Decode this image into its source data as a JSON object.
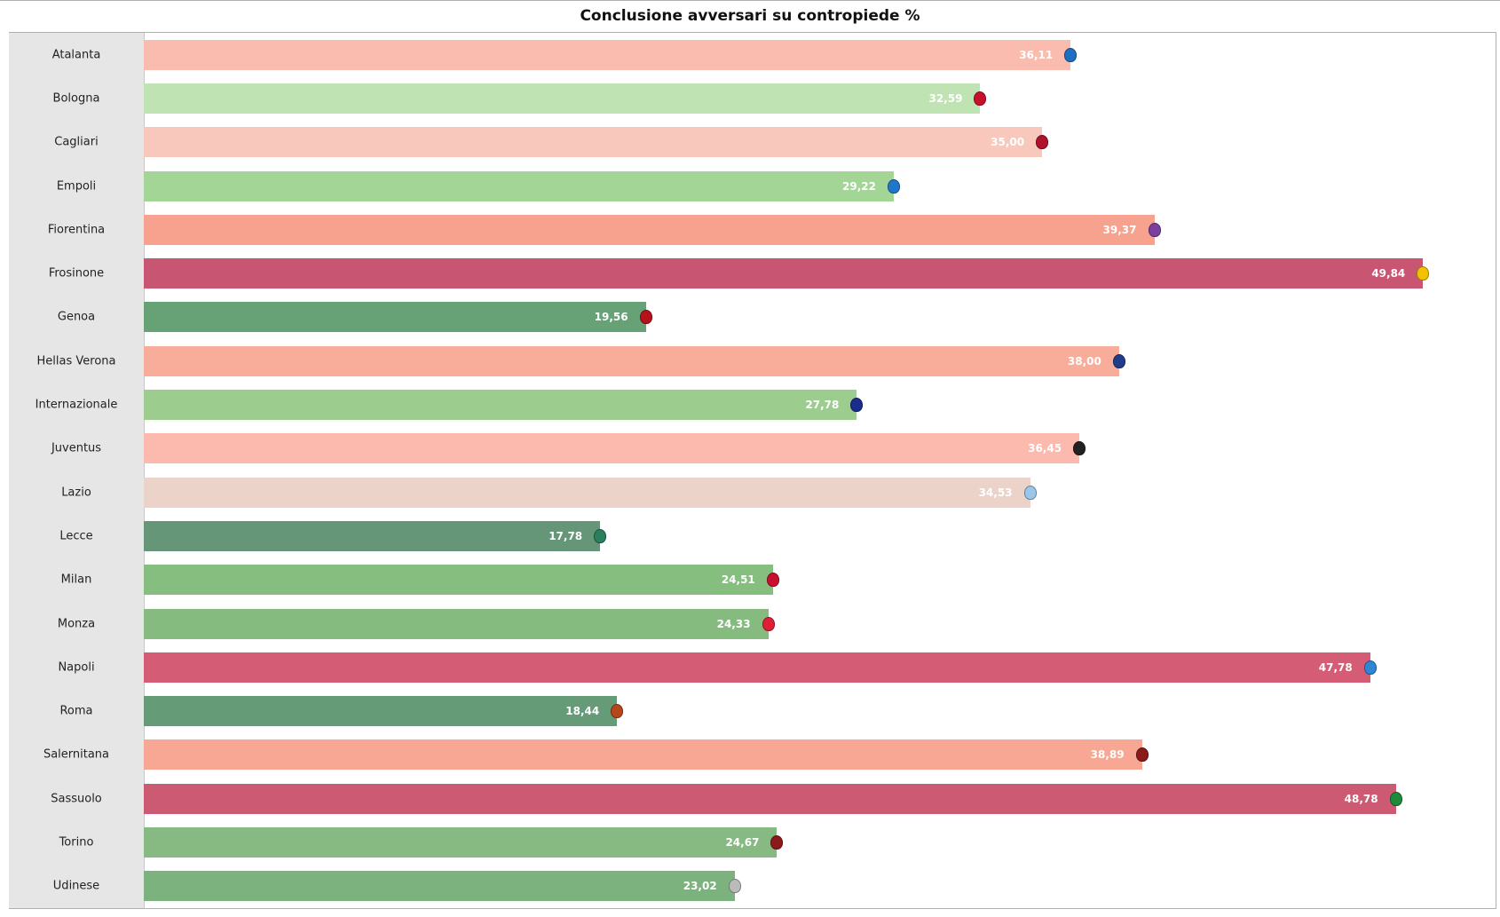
{
  "chart_data": {
    "type": "bar",
    "orientation": "horizontal",
    "title": "Conclusione avversari su contropiede %",
    "xlim": [
      0,
      52.7
    ],
    "grid": false,
    "categories": [
      "Atalanta",
      "Bologna",
      "Cagliari",
      "Empoli",
      "Fiorentina",
      "Frosinone",
      "Genoa",
      "Hellas Verona",
      "Internazionale",
      "Juventus",
      "Lazio",
      "Lecce",
      "Milan",
      "Monza",
      "Napoli",
      "Roma",
      "Salernitana",
      "Sassuolo",
      "Torino",
      "Udinese"
    ],
    "values": [
      36.11,
      32.59,
      35.0,
      29.22,
      39.37,
      49.84,
      19.56,
      38.0,
      27.78,
      36.45,
      34.53,
      17.78,
      24.51,
      24.33,
      47.78,
      18.44,
      38.89,
      48.78,
      24.67,
      23.02
    ],
    "value_labels": [
      "36,11",
      "32,59",
      "35,00",
      "29,22",
      "39,37",
      "49,84",
      "19,56",
      "38,00",
      "27,78",
      "36,45",
      "34,53",
      "17,78",
      "24,51",
      "24,33",
      "47,78",
      "18,44",
      "38,89",
      "48,78",
      "24,67",
      "23,02"
    ],
    "colors": [
      "#fbbcb0",
      "#bfe3b2",
      "#f8c8bd",
      "#a3d597",
      "#f6a28f",
      "#c85672",
      "#67a276",
      "#f8ad9b",
      "#9ccd8f",
      "#fbbaad",
      "#ebd3c9",
      "#649677",
      "#86be80",
      "#85bb7f",
      "#d55c75",
      "#669b77",
      "#f7a793",
      "#cc5a72",
      "#86ba82",
      "#7cb27d"
    ],
    "logo_colors": [
      "#1e6fc2",
      "#c8102e",
      "#b0122b",
      "#1f77c9",
      "#7b3fa0",
      "#f2c200",
      "#b5121b",
      "#1f3d8a",
      "#1a2d8a",
      "#222222",
      "#9cc6e8",
      "#2a7f5f",
      "#c8102e",
      "#e01e37",
      "#2f86d4",
      "#b5471b",
      "#8b1a1a",
      "#1d8a3c",
      "#8b1a1a",
      "#bbbbbb"
    ],
    "logo_icons": [
      "atalanta-crest-icon",
      "bologna-crest-icon",
      "cagliari-crest-icon",
      "empoli-crest-icon",
      "fiorentina-crest-icon",
      "frosinone-crest-icon",
      "genoa-crest-icon",
      "hellas-verona-crest-icon",
      "internazionale-crest-icon",
      "juventus-crest-icon",
      "lazio-crest-icon",
      "lecce-crest-icon",
      "milan-crest-icon",
      "monza-crest-icon",
      "napoli-crest-icon",
      "roma-crest-icon",
      "salernitana-crest-icon",
      "sassuolo-crest-icon",
      "torino-crest-icon",
      "udinese-crest-icon"
    ]
  }
}
